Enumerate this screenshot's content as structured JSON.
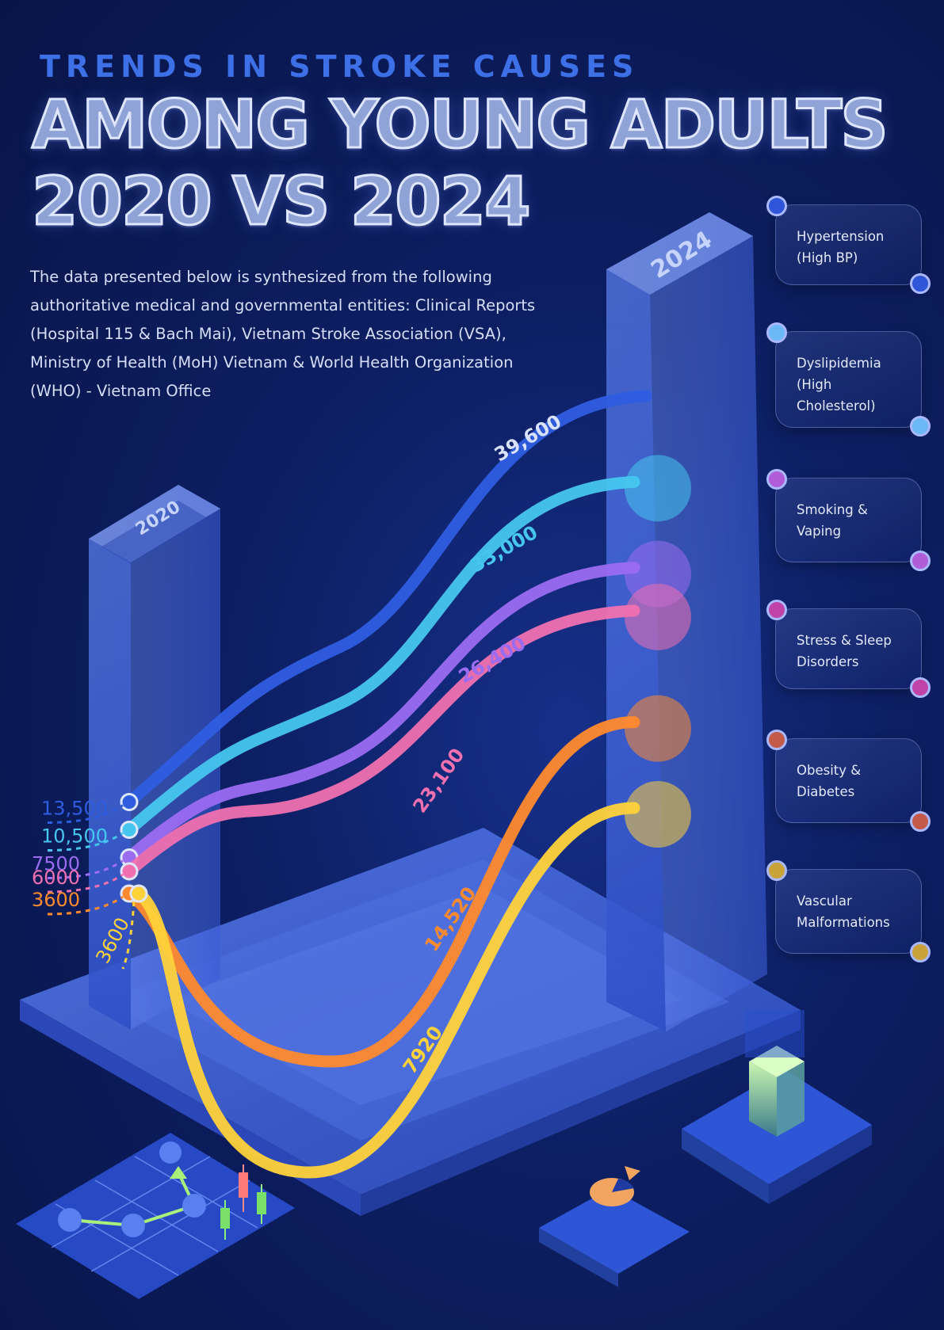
{
  "header": {
    "eyebrow": "TRENDS IN STROKE CAUSES",
    "title_line1": "AMONG YOUNG ADULTS",
    "title_line2": "2020 VS 2024",
    "intro": "The data presented below is synthesized from the following authoritative medical and governmental entities: Clinical Reports (Hospital 115 & Bach Mai), Vietnam Stroke Association (VSA), Ministry of Health (MoH) Vietnam & World Health Organization (WHO) - Vietnam Office"
  },
  "colors": {
    "background": "#0d1f63",
    "pillar": "#3d63d6",
    "platform": "#3a5cd0"
  },
  "decor": {
    "icons": [
      "line-graph-tile-icon",
      "candlestick-icon",
      "pie-chart-icon",
      "cube-pedestal-icon"
    ]
  },
  "chart_data": {
    "type": "line",
    "categories": [
      "2020",
      "2024"
    ],
    "series": [
      {
        "name": "Hypertension (High BP)",
        "values": [
          13500,
          39600
        ],
        "labels": [
          "13,500",
          "39,600"
        ],
        "color": "#2f5de0",
        "legend_dot": "#2f55d8"
      },
      {
        "name": "Dyslipidemia (High Cholesterol)",
        "values": [
          10500,
          33000
        ],
        "labels": [
          "10,500",
          "33,000"
        ],
        "color": "#46c6ee",
        "legend_dot": "#6ab8f5"
      },
      {
        "name": "Smoking & Vaping",
        "values": [
          7500,
          26400
        ],
        "labels": [
          "7500",
          "26,400"
        ],
        "color": "#9b6cf0",
        "legend_dot": "#b15cd8"
      },
      {
        "name": "Stress & Sleep Disorders",
        "values": [
          6000,
          23100
        ],
        "labels": [
          "6000",
          "23,100"
        ],
        "color": "#f070b0",
        "legend_dot": "#c043a8"
      },
      {
        "name": "Obesity & Diabetes",
        "values": [
          3600,
          14520
        ],
        "labels": [
          "3600",
          "14,520"
        ],
        "color": "#ff8a2e",
        "legend_dot": "#c45a48"
      },
      {
        "name": "Vascular Malformations",
        "values": [
          3600,
          7920
        ],
        "labels": [
          "3600",
          "7920"
        ],
        "color": "#ffd23a",
        "legend_dot": "#c9a33a"
      }
    ]
  }
}
